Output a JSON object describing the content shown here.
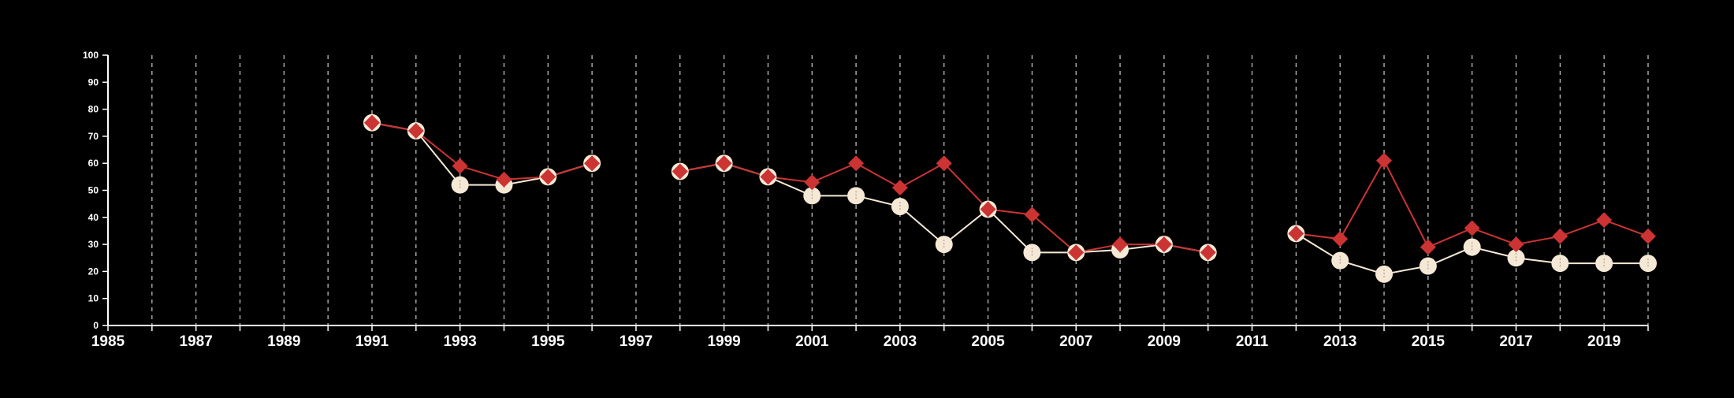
{
  "chart_data": {
    "type": "line",
    "title": "",
    "xlabel": "",
    "ylabel": "",
    "xlim": [
      1985,
      2020
    ],
    "ylim": [
      0,
      100
    ],
    "x_ticks": [
      1985,
      1987,
      1989,
      1991,
      1993,
      1995,
      1997,
      1999,
      2001,
      2003,
      2005,
      2007,
      2009,
      2011,
      2013,
      2015,
      2017,
      2019
    ],
    "y_ticks": [
      0,
      10,
      20,
      30,
      40,
      50,
      60,
      70,
      80,
      90,
      100
    ],
    "grid": "vertical dashed lines at every year",
    "legend": "none",
    "colors": {
      "background": "#000000",
      "axis": "#ffffff",
      "grid": "#cccccc",
      "series_a": "#f5e9d6",
      "series_b": "#cc3333"
    },
    "series": [
      {
        "marker": "circle",
        "color": "#f5e9d6",
        "points": [
          [
            1991,
            75
          ],
          [
            1992,
            72
          ],
          [
            1993,
            52
          ],
          [
            1994,
            52
          ],
          [
            1995,
            55
          ],
          [
            1996,
            60
          ],
          [
            1997,
            null
          ],
          [
            1998,
            57
          ],
          [
            1999,
            60
          ],
          [
            2000,
            55
          ],
          [
            2001,
            48
          ],
          [
            2002,
            48
          ],
          [
            2003,
            44
          ],
          [
            2004,
            30
          ],
          [
            2005,
            43
          ],
          [
            2006,
            27
          ],
          [
            2007,
            27
          ],
          [
            2008,
            28
          ],
          [
            2009,
            30
          ],
          [
            2010,
            27
          ],
          [
            2011,
            null
          ],
          [
            2012,
            34
          ],
          [
            2013,
            24
          ],
          [
            2014,
            19
          ],
          [
            2015,
            22
          ],
          [
            2016,
            29
          ],
          [
            2017,
            25
          ],
          [
            2018,
            23
          ],
          [
            2019,
            23
          ],
          [
            2020,
            23
          ]
        ]
      },
      {
        "marker": "diamond",
        "color": "#cc3333",
        "points": [
          [
            1991,
            75
          ],
          [
            1992,
            72
          ],
          [
            1993,
            59
          ],
          [
            1994,
            54
          ],
          [
            1995,
            55
          ],
          [
            1996,
            60
          ],
          [
            1997,
            null
          ],
          [
            1998,
            57
          ],
          [
            1999,
            60
          ],
          [
            2000,
            55
          ],
          [
            2001,
            53
          ],
          [
            2002,
            60
          ],
          [
            2003,
            51
          ],
          [
            2004,
            60
          ],
          [
            2005,
            43
          ],
          [
            2006,
            41
          ],
          [
            2007,
            27
          ],
          [
            2008,
            30
          ],
          [
            2009,
            30
          ],
          [
            2010,
            27
          ],
          [
            2011,
            null
          ],
          [
            2012,
            34
          ],
          [
            2013,
            32
          ],
          [
            2014,
            61
          ],
          [
            2015,
            29
          ],
          [
            2016,
            36
          ],
          [
            2017,
            30
          ],
          [
            2018,
            33
          ],
          [
            2019,
            39
          ],
          [
            2020,
            33
          ]
        ]
      }
    ]
  }
}
